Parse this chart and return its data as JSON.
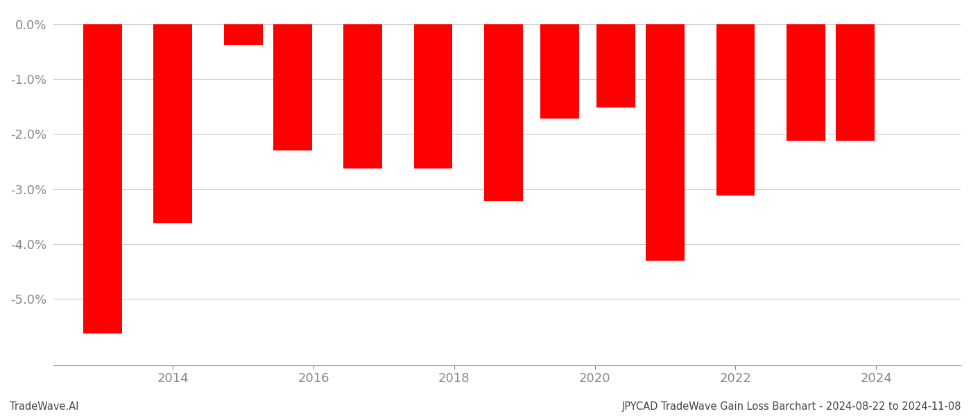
{
  "years": [
    2013,
    2014,
    2015,
    2015.7,
    2016.7,
    2017.7,
    2018.7,
    2019.5,
    2020.3,
    2021.0,
    2022.0,
    2023.0,
    2023.7
  ],
  "values": [
    -5.62,
    -3.62,
    -0.38,
    -2.3,
    -2.62,
    -2.62,
    -3.22,
    -1.72,
    -1.52,
    -4.3,
    -3.12,
    -2.12,
    -2.12
  ],
  "bar_color": "#ff0000",
  "ylim": [
    -6.2,
    0.25
  ],
  "yticks": [
    0.0,
    -1.0,
    -2.0,
    -3.0,
    -4.0,
    -5.0
  ],
  "xticks": [
    2014,
    2016,
    2018,
    2020,
    2022,
    2024
  ],
  "bar_width": 0.55,
  "background_color": "#ffffff",
  "grid_color": "#cccccc",
  "axis_color": "#888888",
  "tick_color": "#888888",
  "tick_fontsize": 13,
  "footer_left": "TradeWave.AI",
  "footer_right": "JPYCAD TradeWave Gain Loss Barchart - 2024-08-22 to 2024-11-08",
  "footer_fontsize": 10.5,
  "xlim_min": 2012.3,
  "xlim_max": 2025.2
}
